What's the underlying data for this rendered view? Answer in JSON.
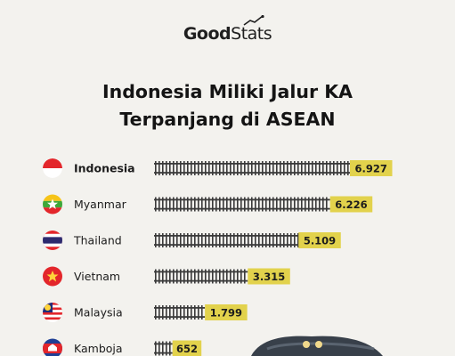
{
  "logo": {
    "part1": "Good",
    "part2": "Stats"
  },
  "title": {
    "line1": "Indonesia Miliki Jalur KA",
    "line2": "Terpanjang di ASEAN"
  },
  "colors": {
    "background": "#f3f2ee",
    "label_box": "#e2d24c",
    "rail": "#3a3a3a"
  },
  "chart_data": {
    "type": "bar",
    "title": "Indonesia Miliki Jalur KA Terpanjang di ASEAN",
    "categories": [
      "Indonesia",
      "Myanmar",
      "Thailand",
      "Vietnam",
      "Malaysia",
      "Kamboja"
    ],
    "values": [
      6927,
      6226,
      5109,
      3315,
      1799,
      652
    ],
    "value_labels": [
      "6.927",
      "6.226",
      "5.109",
      "3.315",
      "1.799",
      "652"
    ],
    "flags": [
      "flag-indonesia-icon",
      "flag-myanmar-icon",
      "flag-thailand-icon",
      "flag-vietnam-icon",
      "flag-malaysia-icon",
      "flag-cambodia-icon"
    ],
    "highlight": "Indonesia",
    "xlabel": "",
    "ylabel": ""
  }
}
